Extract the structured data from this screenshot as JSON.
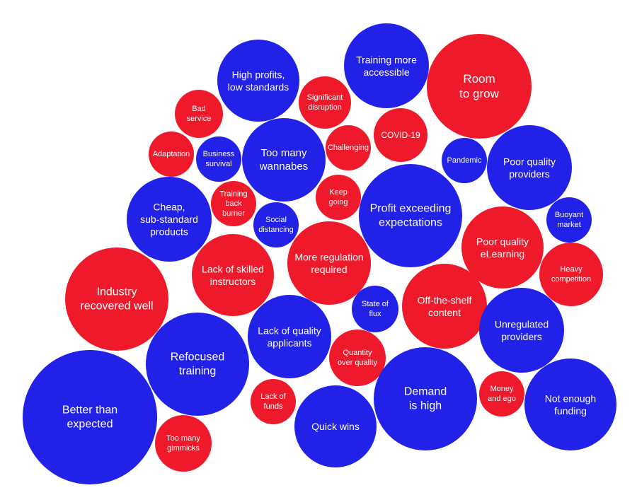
{
  "colors": {
    "blue": "#2121e8",
    "red": "#ee1a2b",
    "text": "#ffffff"
  },
  "bubbles": [
    {
      "lines": [
        "Better than",
        "expected"
      ],
      "color": "blue"
    },
    {
      "lines": [
        "Industry",
        "recovered well"
      ],
      "color": "red"
    },
    {
      "lines": [
        "Refocused",
        "training"
      ],
      "color": "blue"
    },
    {
      "lines": [
        "Too many",
        "gimmicks"
      ],
      "color": "red"
    },
    {
      "lines": [
        "Cheap,",
        "sub-standard",
        "products"
      ],
      "color": "blue"
    },
    {
      "lines": [
        "Lack of skilled",
        "instructors"
      ],
      "color": "red"
    },
    {
      "lines": [
        "Training",
        "back",
        "burner"
      ],
      "color": "red"
    },
    {
      "lines": [
        "Adaptation"
      ],
      "color": "red"
    },
    {
      "lines": [
        "Business",
        "survival"
      ],
      "color": "blue"
    },
    {
      "lines": [
        "Bad",
        "service"
      ],
      "color": "red"
    },
    {
      "lines": [
        "High profits,",
        "low standards"
      ],
      "color": "blue"
    },
    {
      "lines": [
        "Too many",
        "wannabes"
      ],
      "color": "blue"
    },
    {
      "lines": [
        "Social",
        "distancing"
      ],
      "color": "blue"
    },
    {
      "lines": [
        "Significant",
        "disruption"
      ],
      "color": "red"
    },
    {
      "lines": [
        "Challenging"
      ],
      "color": "red"
    },
    {
      "lines": [
        "Keep",
        "going"
      ],
      "color": "red"
    },
    {
      "lines": [
        "More regulation",
        "required"
      ],
      "color": "red"
    },
    {
      "lines": [
        "Lack of quality",
        "applicants"
      ],
      "color": "blue"
    },
    {
      "lines": [
        "Lack of",
        "funds"
      ],
      "color": "red"
    },
    {
      "lines": [
        "Quick wins"
      ],
      "color": "blue"
    },
    {
      "lines": [
        "Quantity",
        "over quality"
      ],
      "color": "red"
    },
    {
      "lines": [
        "State of",
        "flux"
      ],
      "color": "blue"
    },
    {
      "lines": [
        "Training more",
        "accessible"
      ],
      "color": "blue"
    },
    {
      "lines": [
        "COVID-19"
      ],
      "color": "red"
    },
    {
      "lines": [
        "Room",
        "to grow"
      ],
      "color": "red"
    },
    {
      "lines": [
        "Pandemic"
      ],
      "color": "blue"
    },
    {
      "lines": [
        "Poor quality",
        "providers"
      ],
      "color": "blue"
    },
    {
      "lines": [
        "Profit exceeding",
        "expectations"
      ],
      "color": "blue"
    },
    {
      "lines": [
        "Buoyant",
        "market"
      ],
      "color": "blue"
    },
    {
      "lines": [
        "Poor quality",
        "eLearning"
      ],
      "color": "red"
    },
    {
      "lines": [
        "Heavy",
        "competition"
      ],
      "color": "red"
    },
    {
      "lines": [
        "Off-the-shelf",
        "content"
      ],
      "color": "red"
    },
    {
      "lines": [
        "Unregulated",
        "providers"
      ],
      "color": "blue"
    },
    {
      "lines": [
        "Demand",
        "is high"
      ],
      "color": "blue"
    },
    {
      "lines": [
        "Money",
        "and ego"
      ],
      "color": "red"
    },
    {
      "lines": [
        "Not enough",
        "funding"
      ],
      "color": "blue"
    }
  ]
}
